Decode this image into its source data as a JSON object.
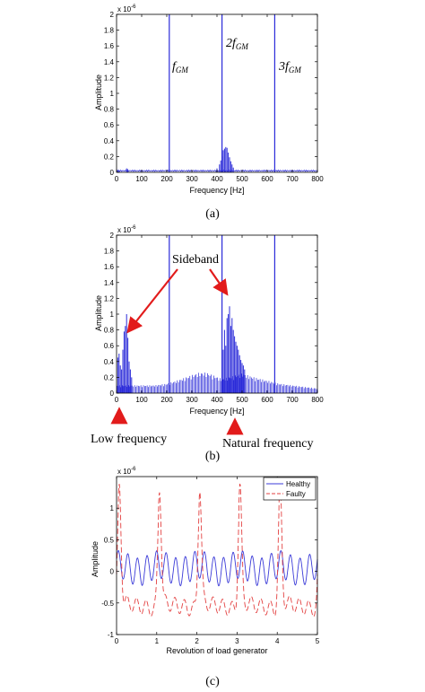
{
  "chart_data": [
    {
      "type": "line",
      "caption": "(a)",
      "xlabel": "Frequency [Hz]",
      "ylabel": "Amplitude",
      "y_exponent": "x 10",
      "y_exponent_power": "-6",
      "xlim": [
        0,
        800
      ],
      "ylim": [
        0,
        2
      ],
      "xticks": [
        "0",
        "100",
        "200",
        "300",
        "400",
        "500",
        "600",
        "700",
        "800"
      ],
      "yticks": [
        "0",
        "0.2",
        "0.4",
        "0.6",
        "0.8",
        "1",
        "1.2",
        "1.4",
        "1.6",
        "1.8",
        "2"
      ],
      "grid": false,
      "mesh_lines": [
        210,
        420,
        630
      ],
      "mesh_labels": [
        {
          "base": "f",
          "sub": "GM",
          "x": 210
        },
        {
          "base": "2f",
          "sub": "GM",
          "x": 420
        },
        {
          "base": "3f",
          "sub": "GM",
          "x": 630
        }
      ],
      "spectrum_peaks": [
        [
          0,
          0.04
        ],
        [
          5,
          0.03
        ],
        [
          10,
          0.02
        ],
        [
          40,
          0.05
        ],
        [
          45,
          0.04
        ],
        [
          400,
          0.05
        ],
        [
          410,
          0.1
        ],
        [
          415,
          0.15
        ],
        [
          420,
          0.2
        ],
        [
          425,
          0.28
        ],
        [
          430,
          0.3
        ],
        [
          435,
          0.32
        ],
        [
          440,
          0.31
        ],
        [
          445,
          0.25
        ],
        [
          450,
          0.19
        ],
        [
          455,
          0.14
        ],
        [
          460,
          0.1
        ],
        [
          465,
          0.06
        ]
      ],
      "baseline": 0.02
    },
    {
      "type": "line",
      "caption": "(b)",
      "xlabel": "Frequency [Hz]",
      "ylabel": "Amplitude",
      "y_exponent": "x 10",
      "y_exponent_power": "-6",
      "xlim": [
        0,
        800
      ],
      "ylim": [
        0,
        2
      ],
      "xticks": [
        "0",
        "100",
        "200",
        "300",
        "400",
        "500",
        "600",
        "700",
        "800"
      ],
      "yticks": [
        "0",
        "0.2",
        "0.4",
        "0.6",
        "0.8",
        "1",
        "1.2",
        "1.4",
        "1.6",
        "1.8",
        "2"
      ],
      "grid": false,
      "mesh_lines": [
        210,
        420,
        630
      ],
      "annotations": {
        "sideband": "Sideband",
        "low_frequency": "Low frequency",
        "natural_frequency": "Natural frequency"
      },
      "spectrum_peaks": [
        [
          5,
          0.45
        ],
        [
          10,
          0.5
        ],
        [
          15,
          0.35
        ],
        [
          20,
          0.3
        ],
        [
          25,
          0.55
        ],
        [
          30,
          0.78
        ],
        [
          35,
          0.85
        ],
        [
          40,
          1.0
        ],
        [
          45,
          0.7
        ],
        [
          50,
          0.4
        ],
        [
          55,
          0.3
        ],
        [
          60,
          0.2
        ],
        [
          425,
          0.55
        ],
        [
          430,
          0.8
        ],
        [
          435,
          0.6
        ],
        [
          440,
          0.95
        ],
        [
          445,
          1.0
        ],
        [
          450,
          1.1
        ],
        [
          455,
          0.85
        ],
        [
          460,
          0.95
        ],
        [
          465,
          0.8
        ],
        [
          470,
          0.72
        ],
        [
          475,
          0.65
        ],
        [
          480,
          0.6
        ],
        [
          485,
          0.55
        ],
        [
          490,
          0.48
        ],
        [
          495,
          0.42
        ],
        [
          500,
          0.38
        ],
        [
          505,
          0.35
        ],
        [
          510,
          0.3
        ]
      ],
      "envelope": [
        [
          0,
          0.1
        ],
        [
          60,
          0.1
        ],
        [
          100,
          0.1
        ],
        [
          150,
          0.1
        ],
        [
          200,
          0.12
        ],
        [
          250,
          0.17
        ],
        [
          300,
          0.23
        ],
        [
          330,
          0.26
        ],
        [
          360,
          0.26
        ],
        [
          390,
          0.22
        ],
        [
          420,
          0.18
        ],
        [
          500,
          0.25
        ],
        [
          550,
          0.2
        ],
        [
          600,
          0.16
        ],
        [
          650,
          0.12
        ],
        [
          700,
          0.1
        ],
        [
          750,
          0.08
        ],
        [
          800,
          0.06
        ]
      ]
    },
    {
      "type": "line",
      "caption": "(c)",
      "xlabel": "Revolution of load generator",
      "ylabel": "Amplitude",
      "y_exponent": "x 10",
      "y_exponent_power": "-6",
      "xlim": [
        0,
        5
      ],
      "ylim": [
        -1,
        1.5
      ],
      "xticks": [
        "0",
        "1",
        "2",
        "3",
        "4",
        "5"
      ],
      "yticks": [
        "-1",
        "-0.5",
        "0",
        "0.5",
        "1"
      ],
      "grid": false,
      "legend_position": "top-right",
      "series": [
        {
          "name": "Healthy",
          "color": "#3b3bd8",
          "amplitude": 0.22,
          "offset": 0.05,
          "cycles_per_rev": 4.2
        },
        {
          "name": "Faulty",
          "color": "#e34040",
          "peak": 1.35,
          "trough": -0.62,
          "cycles_per_rev": 1.0
        }
      ]
    }
  ],
  "colors": {
    "spectrum": "#2b2bd9",
    "healthy": "#3b3bd8",
    "faulty": "#e34040",
    "arrow": "#e21b1b"
  }
}
